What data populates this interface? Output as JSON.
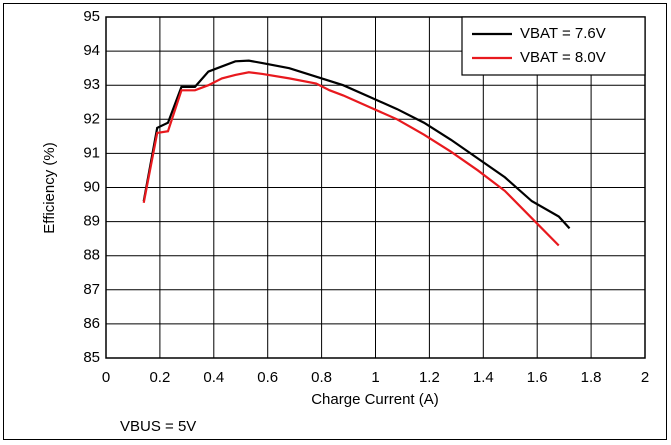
{
  "chart_data": {
    "type": "line",
    "xlabel": "Charge Current (A)",
    "ylabel": "Efficiency (%)",
    "annotation": "VBUS = 5V",
    "xlim": [
      0,
      2
    ],
    "xticks": [
      0,
      0.2,
      0.4,
      0.6,
      0.8,
      1,
      1.2,
      1.4,
      1.6,
      1.8,
      2
    ],
    "ylim": [
      85,
      95
    ],
    "yticks": [
      85,
      86,
      87,
      88,
      89,
      90,
      91,
      92,
      93,
      94,
      95
    ],
    "grid": true,
    "legend": "upper right",
    "series": [
      {
        "name": "VBAT = 7.6V",
        "color": "#000000",
        "x": [
          0.14,
          0.19,
          0.23,
          0.28,
          0.33,
          0.38,
          0.43,
          0.48,
          0.53,
          0.58,
          0.68,
          0.78,
          0.88,
          0.98,
          1.08,
          1.18,
          1.28,
          1.38,
          1.48,
          1.58,
          1.68,
          1.72
        ],
        "values": [
          89.6,
          91.75,
          91.9,
          92.95,
          92.95,
          93.4,
          93.55,
          93.7,
          93.72,
          93.65,
          93.5,
          93.25,
          93.0,
          92.65,
          92.3,
          91.9,
          91.4,
          90.85,
          90.3,
          89.6,
          89.15,
          88.8
        ]
      },
      {
        "name": "VBAT = 8.0V",
        "color": "#e8191e",
        "x": [
          0.14,
          0.19,
          0.23,
          0.28,
          0.33,
          0.38,
          0.43,
          0.48,
          0.53,
          0.58,
          0.68,
          0.78,
          0.83,
          0.88,
          0.98,
          1.08,
          1.18,
          1.28,
          1.38,
          1.48,
          1.58,
          1.68
        ],
        "values": [
          89.55,
          91.6,
          91.65,
          92.85,
          92.85,
          93.0,
          93.2,
          93.3,
          93.38,
          93.33,
          93.2,
          93.05,
          92.85,
          92.7,
          92.35,
          92.0,
          91.55,
          91.05,
          90.5,
          89.9,
          89.1,
          88.3
        ]
      }
    ]
  }
}
